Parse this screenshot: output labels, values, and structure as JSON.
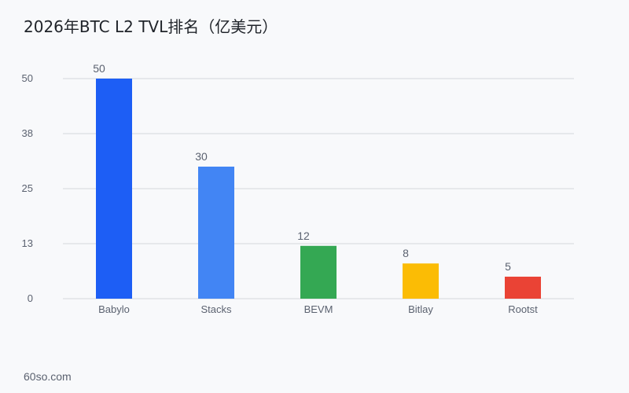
{
  "chart_data": {
    "type": "bar",
    "title": "2026年BTC L2 TVL排名（亿美元）",
    "categories": [
      "Babylo",
      "Stacks",
      "BEVM",
      "Bitlay",
      "Rootst"
    ],
    "values": [
      50,
      30,
      12,
      8,
      5
    ],
    "value_labels": [
      "50",
      "30",
      "12",
      "8",
      "5"
    ],
    "colors": [
      "#1d5ef5",
      "#4285f4",
      "#34a853",
      "#fbbc05",
      "#ea4335"
    ],
    "yticks": [
      0,
      12.5,
      25,
      37.5,
      50
    ],
    "ytick_labels": [
      "0",
      "13",
      "25",
      "38",
      "50"
    ],
    "ylim": [
      0,
      50
    ],
    "xlabel": "",
    "ylabel": "",
    "grid": true,
    "legend": "none"
  },
  "footer": {
    "source": "60so.com"
  },
  "style": {
    "background": "#f8f9fb",
    "grid_color": "#d3d6db",
    "text_color": "#5b6270",
    "title_color": "#1f2329"
  }
}
